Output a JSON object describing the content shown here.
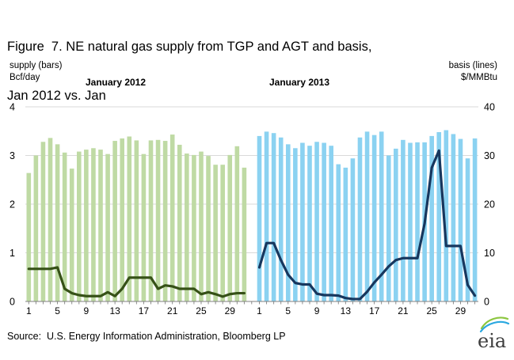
{
  "title": {
    "line1": "Figure  7. NE natural gas supply from TGP and AGT and basis,",
    "line2": "Jan 2012 vs. Jan"
  },
  "axis_captions": {
    "left_line1": "supply (bars)",
    "left_line2": "Bcf/day",
    "right_line1": "basis (lines)",
    "right_line2": "$/MMBtu"
  },
  "footer": {
    "source": "Source:  U.S. Energy Information Administration, Bloomberg LP"
  },
  "logo": {
    "text": "eia"
  },
  "colors": {
    "bar_2012": "#bfdaa4",
    "bar_2013": "#8bd2f1",
    "line_2012": "#365117",
    "line_2013": "#17375e",
    "grid": "#d9d9d9",
    "axis": "#808080",
    "text": "#000000"
  },
  "chart_data": {
    "type": "bar+line",
    "title": "NE natural gas supply from TGP and AGT (bars) and basis (lines), Jan 2012 vs. Jan 2013",
    "grid": true,
    "legend": false,
    "bar_axis": {
      "side": "left",
      "label": "supply (bars) Bcf/day",
      "ticks": [
        4,
        3,
        2,
        1,
        0
      ],
      "range": [
        0,
        4
      ]
    },
    "line_axis": {
      "side": "right",
      "label": "basis (lines) $/MMBtu",
      "ticks": [
        40,
        30,
        20,
        10,
        0
      ],
      "range": [
        0,
        40
      ]
    },
    "x_tick_labels": [
      1,
      5,
      9,
      13,
      17,
      21,
      25,
      29
    ],
    "panels": [
      {
        "label": "January 2012",
        "bar_series": "supply Jan 2012 (Bcf/day)",
        "bar_color": "#bfdaa4",
        "bar_values": [
          2.64,
          3.0,
          3.28,
          3.36,
          3.23,
          3.06,
          2.73,
          3.08,
          3.12,
          3.15,
          3.12,
          3.03,
          3.3,
          3.35,
          3.39,
          3.31,
          3.03,
          3.31,
          3.32,
          3.3,
          3.43,
          3.22,
          3.04,
          3.01,
          3.08,
          2.99,
          2.81,
          2.81,
          3.01,
          3.19,
          2.75
        ],
        "line_series": "basis Jan 2012 ($/MMBtu)",
        "line_color": "#365117",
        "line_values": [
          6.7,
          6.7,
          6.7,
          6.7,
          7.0,
          2.6,
          1.7,
          1.3,
          1.1,
          1.1,
          1.1,
          1.9,
          1.1,
          2.6,
          4.9,
          4.9,
          4.9,
          4.9,
          2.6,
          3.3,
          3.1,
          2.6,
          2.6,
          2.6,
          1.5,
          1.9,
          1.5,
          1.0,
          1.5,
          1.7,
          1.7
        ]
      },
      {
        "label": "January 2013",
        "bar_series": "supply Jan 2013 (Bcf/day)",
        "bar_color": "#8bd2f1",
        "bar_values": [
          3.4,
          3.49,
          3.46,
          3.37,
          3.23,
          3.15,
          3.26,
          3.2,
          3.28,
          3.26,
          3.2,
          2.82,
          2.75,
          2.94,
          3.37,
          3.49,
          3.42,
          3.49,
          3.0,
          3.14,
          3.32,
          3.26,
          3.27,
          3.27,
          3.4,
          3.48,
          3.52,
          3.44,
          3.34,
          2.94,
          3.35
        ],
        "line_series": "basis Jan 2013 ($/MMBtu)",
        "line_color": "#17375e",
        "line_values": [
          7.0,
          12.0,
          12.0,
          8.5,
          5.5,
          3.8,
          3.5,
          3.5,
          1.6,
          1.3,
          1.3,
          1.2,
          0.7,
          0.5,
          0.5,
          2.0,
          3.9,
          5.5,
          7.2,
          8.5,
          8.9,
          8.9,
          8.9,
          16.0,
          27.5,
          31.0,
          11.4,
          11.4,
          11.4,
          3.4,
          1.2
        ]
      }
    ]
  }
}
